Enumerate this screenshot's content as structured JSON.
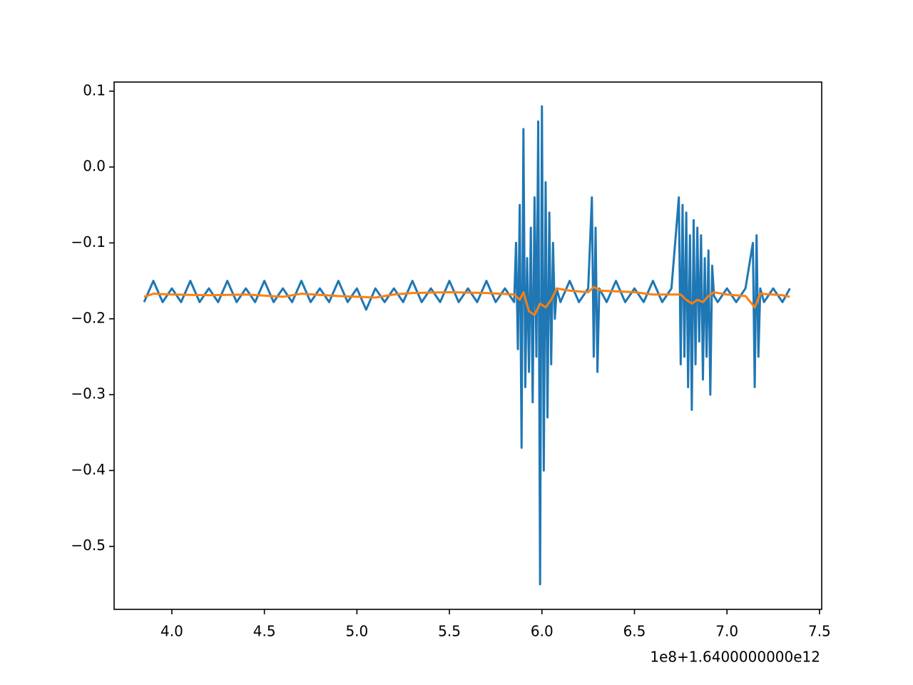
{
  "chart_data": {
    "type": "line",
    "x_offset_label": "1e8+1.6400000000e12",
    "xlim": [
      3.688,
      7.512
    ],
    "xticks": [
      {
        "value": 4.0,
        "label": "4.0"
      },
      {
        "value": 4.5,
        "label": "4.5"
      },
      {
        "value": 5.0,
        "label": "5.0"
      },
      {
        "value": 5.5,
        "label": "5.5"
      },
      {
        "value": 6.0,
        "label": "6.0"
      },
      {
        "value": 6.5,
        "label": "6.5"
      },
      {
        "value": 7.0,
        "label": "7.0"
      },
      {
        "value": 7.5,
        "label": "7.5"
      }
    ],
    "ylim": [
      -0.583,
      0.112
    ],
    "yticks": [
      {
        "value": -0.5,
        "label": "−0.5"
      },
      {
        "value": -0.4,
        "label": "−0.4"
      },
      {
        "value": -0.3,
        "label": "−0.3"
      },
      {
        "value": -0.2,
        "label": "−0.2"
      },
      {
        "value": -0.1,
        "label": "−0.1"
      },
      {
        "value": 0.0,
        "label": "0.0"
      },
      0.1
    ],
    "grid": false,
    "series": [
      {
        "color": "#1f77b4",
        "x": [
          3.85,
          3.9,
          3.95,
          4.0,
          4.05,
          4.1,
          4.15,
          4.2,
          4.25,
          4.3,
          4.35,
          4.4,
          4.45,
          4.5,
          4.55,
          4.6,
          4.65,
          4.7,
          4.75,
          4.8,
          4.85,
          4.9,
          4.95,
          5.0,
          5.05,
          5.1,
          5.15,
          5.2,
          5.25,
          5.3,
          5.35,
          5.4,
          5.45,
          5.5,
          5.55,
          5.6,
          5.65,
          5.7,
          5.75,
          5.8,
          5.85,
          5.86,
          5.87,
          5.88,
          5.89,
          5.9,
          5.91,
          5.92,
          5.93,
          5.94,
          5.95,
          5.96,
          5.97,
          5.98,
          5.99,
          6.0,
          6.01,
          6.02,
          6.03,
          6.04,
          6.05,
          6.06,
          6.07,
          6.08,
          6.1,
          6.15,
          6.2,
          6.25,
          6.27,
          6.28,
          6.29,
          6.3,
          6.31,
          6.35,
          6.4,
          6.45,
          6.5,
          6.55,
          6.6,
          6.65,
          6.7,
          6.74,
          6.75,
          6.76,
          6.77,
          6.78,
          6.79,
          6.8,
          6.81,
          6.82,
          6.83,
          6.84,
          6.85,
          6.86,
          6.87,
          6.88,
          6.89,
          6.9,
          6.91,
          6.92,
          6.93,
          6.95,
          7.0,
          7.05,
          7.1,
          7.14,
          7.15,
          7.16,
          7.17,
          7.18,
          7.2,
          7.25,
          7.3,
          7.34
        ],
        "values": [
          -0.178,
          -0.15,
          -0.178,
          -0.16,
          -0.178,
          -0.15,
          -0.178,
          -0.16,
          -0.178,
          -0.15,
          -0.178,
          -0.16,
          -0.178,
          -0.15,
          -0.178,
          -0.16,
          -0.178,
          -0.15,
          -0.178,
          -0.16,
          -0.178,
          -0.15,
          -0.178,
          -0.16,
          -0.188,
          -0.16,
          -0.178,
          -0.16,
          -0.178,
          -0.15,
          -0.178,
          -0.16,
          -0.178,
          -0.15,
          -0.178,
          -0.16,
          -0.178,
          -0.15,
          -0.178,
          -0.16,
          -0.178,
          -0.1,
          -0.24,
          -0.05,
          -0.37,
          0.05,
          -0.29,
          -0.12,
          -0.27,
          -0.08,
          -0.31,
          -0.04,
          -0.25,
          0.06,
          -0.55,
          0.08,
          -0.4,
          -0.02,
          -0.33,
          -0.06,
          -0.26,
          -0.1,
          -0.2,
          -0.16,
          -0.178,
          -0.15,
          -0.178,
          -0.16,
          -0.04,
          -0.25,
          -0.08,
          -0.27,
          -0.16,
          -0.178,
          -0.15,
          -0.178,
          -0.16,
          -0.178,
          -0.15,
          -0.178,
          -0.16,
          -0.04,
          -0.26,
          -0.05,
          -0.25,
          -0.06,
          -0.29,
          -0.09,
          -0.32,
          -0.07,
          -0.26,
          -0.08,
          -0.23,
          -0.09,
          -0.28,
          -0.12,
          -0.25,
          -0.11,
          -0.3,
          -0.13,
          -0.17,
          -0.178,
          -0.16,
          -0.178,
          -0.16,
          -0.1,
          -0.29,
          -0.09,
          -0.25,
          -0.16,
          -0.178,
          -0.16,
          -0.178,
          -0.16
        ]
      },
      {
        "color": "#ff7f0e",
        "x": [
          3.85,
          3.9,
          4.0,
          4.2,
          4.4,
          4.6,
          4.7,
          4.9,
          5.1,
          5.2,
          5.3,
          5.5,
          5.7,
          5.85,
          5.88,
          5.9,
          5.93,
          5.96,
          5.99,
          6.02,
          6.05,
          6.08,
          6.15,
          6.25,
          6.28,
          6.32,
          6.5,
          6.6,
          6.75,
          6.78,
          6.81,
          6.84,
          6.87,
          6.9,
          6.93,
          7.0,
          7.1,
          7.15,
          7.18,
          7.3,
          7.34
        ],
        "values": [
          -0.171,
          -0.167,
          -0.168,
          -0.169,
          -0.168,
          -0.171,
          -0.167,
          -0.17,
          -0.172,
          -0.168,
          -0.166,
          -0.165,
          -0.166,
          -0.168,
          -0.175,
          -0.165,
          -0.19,
          -0.195,
          -0.18,
          -0.185,
          -0.175,
          -0.16,
          -0.163,
          -0.165,
          -0.158,
          -0.163,
          -0.165,
          -0.168,
          -0.168,
          -0.175,
          -0.18,
          -0.175,
          -0.178,
          -0.17,
          -0.165,
          -0.168,
          -0.17,
          -0.185,
          -0.167,
          -0.169,
          -0.171
        ]
      }
    ]
  }
}
